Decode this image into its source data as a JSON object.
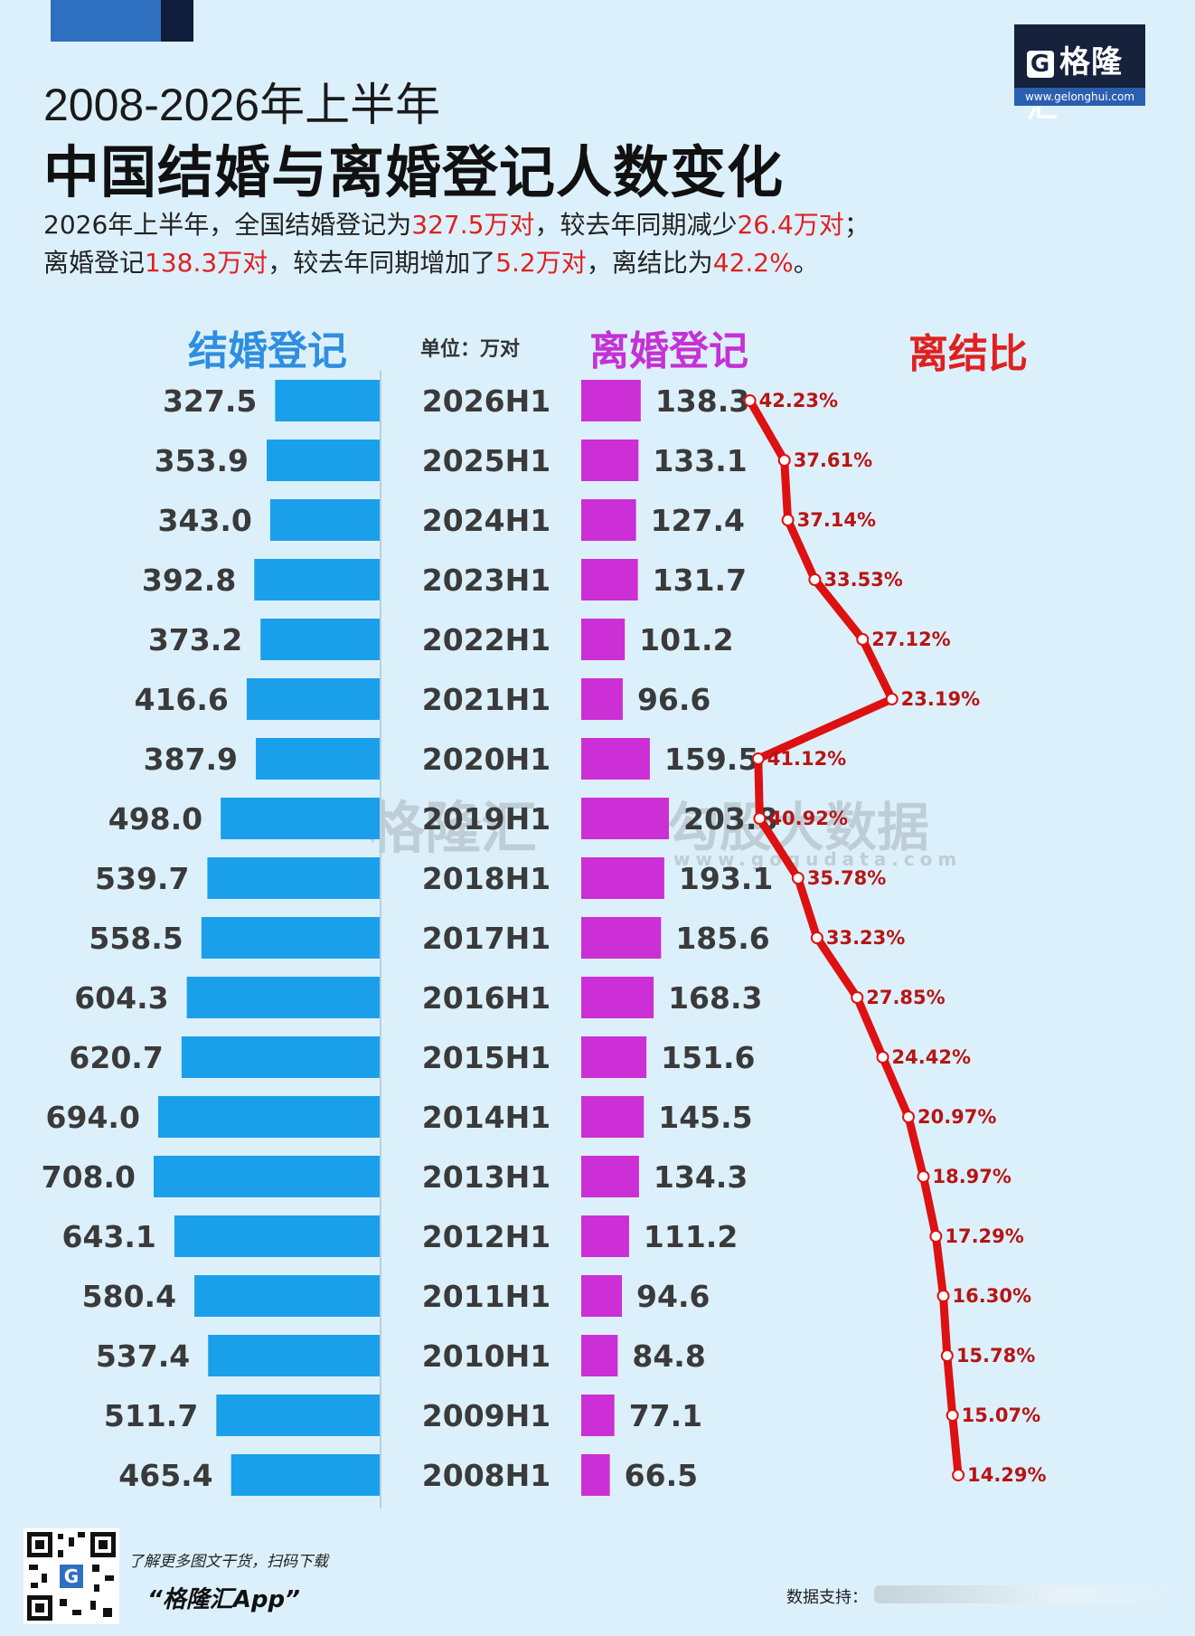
{
  "header": {
    "title_line1": "2008-2026年上半年",
    "title_line2": "中国结婚与离婚登记人数变化",
    "logo_text": "格隆汇",
    "logo_url": "www.gelonghui.com"
  },
  "summary": {
    "line1_a": "2026年上半年，全国结婚登记为",
    "line1_b": "327.5万对",
    "line1_c": "，较去年同期减少",
    "line1_d": "26.4万对",
    "line1_e": "；",
    "line2_a": "离婚登记",
    "line2_b": "138.3万对",
    "line2_c": "，较去年同期增加了",
    "line2_d": "5.2万对",
    "line2_e": "，离结比为",
    "line2_f": "42.2%",
    "line2_g": "。"
  },
  "colors": {
    "marriage": "#1aa0ea",
    "divorce": "#cc2fd6",
    "ratio": "#dd1111",
    "ratio_label": "#b81414",
    "background": "#dcf0fb"
  },
  "chart_data": {
    "type": "bar",
    "headers": {
      "marriage": "结婚登记",
      "unit": "单位：万对",
      "divorce": "离婚登记",
      "ratio": "离结比"
    },
    "categories": [
      "2026H1",
      "2025H1",
      "2024H1",
      "2023H1",
      "2022H1",
      "2021H1",
      "2020H1",
      "2019H1",
      "2018H1",
      "2017H1",
      "2016H1",
      "2015H1",
      "2014H1",
      "2013H1",
      "2012H1",
      "2011H1",
      "2010H1",
      "2009H1",
      "2008H1"
    ],
    "series": [
      {
        "name": "结婚登记",
        "values": [
          327.5,
          353.9,
          343.0,
          392.8,
          373.2,
          416.6,
          387.9,
          498.0,
          539.7,
          558.5,
          604.3,
          620.7,
          694.0,
          708.0,
          643.1,
          580.4,
          537.4,
          511.7,
          465.4
        ],
        "labels": [
          "327.5",
          "353.9",
          "343.0",
          "392.8",
          "373.2",
          "416.6",
          "387.9",
          "498.0",
          "539.7",
          "558.5",
          "604.3",
          "620.7",
          "694.0",
          "708.0",
          "643.1",
          "580.4",
          "537.4",
          "511.7",
          "465.4"
        ]
      },
      {
        "name": "离婚登记",
        "values": [
          138.3,
          133.1,
          127.4,
          131.7,
          101.2,
          96.6,
          159.5,
          203.8,
          193.1,
          185.6,
          168.3,
          151.6,
          145.5,
          134.3,
          111.2,
          94.6,
          84.8,
          77.1,
          66.5
        ],
        "labels": [
          "138.3",
          "133.1",
          "127.4",
          "131.7",
          "101.2",
          "96.6",
          "159.5",
          "203.8",
          "193.1",
          "185.6",
          "168.3",
          "151.6",
          "145.5",
          "134.3",
          "111.2",
          "94.6",
          "84.8",
          "77.1",
          "66.5"
        ]
      },
      {
        "name": "离结比",
        "values": [
          42.23,
          37.61,
          37.14,
          33.53,
          27.12,
          23.19,
          41.12,
          40.92,
          35.78,
          33.23,
          27.85,
          24.42,
          20.97,
          18.97,
          17.29,
          16.3,
          15.78,
          15.07,
          14.29
        ],
        "labels": [
          "42.23%",
          "37.61%",
          "37.14%",
          "33.53%",
          "27.12%",
          "23.19%",
          "41.12%",
          "40.92%",
          "35.78%",
          "33.23%",
          "27.85%",
          "24.42%",
          "20.97%",
          "18.97%",
          "17.29%",
          "16.30%",
          "15.78%",
          "15.07%",
          "14.29%"
        ]
      }
    ]
  },
  "watermark": {
    "brand": "格隆汇",
    "data_brand": "勾股大数据",
    "data_url": "www.gogudata.com"
  },
  "footer": {
    "note": "了解更多图文干货，扫码下载",
    "app": "“格隆汇App”",
    "source_label": "数据支持："
  }
}
